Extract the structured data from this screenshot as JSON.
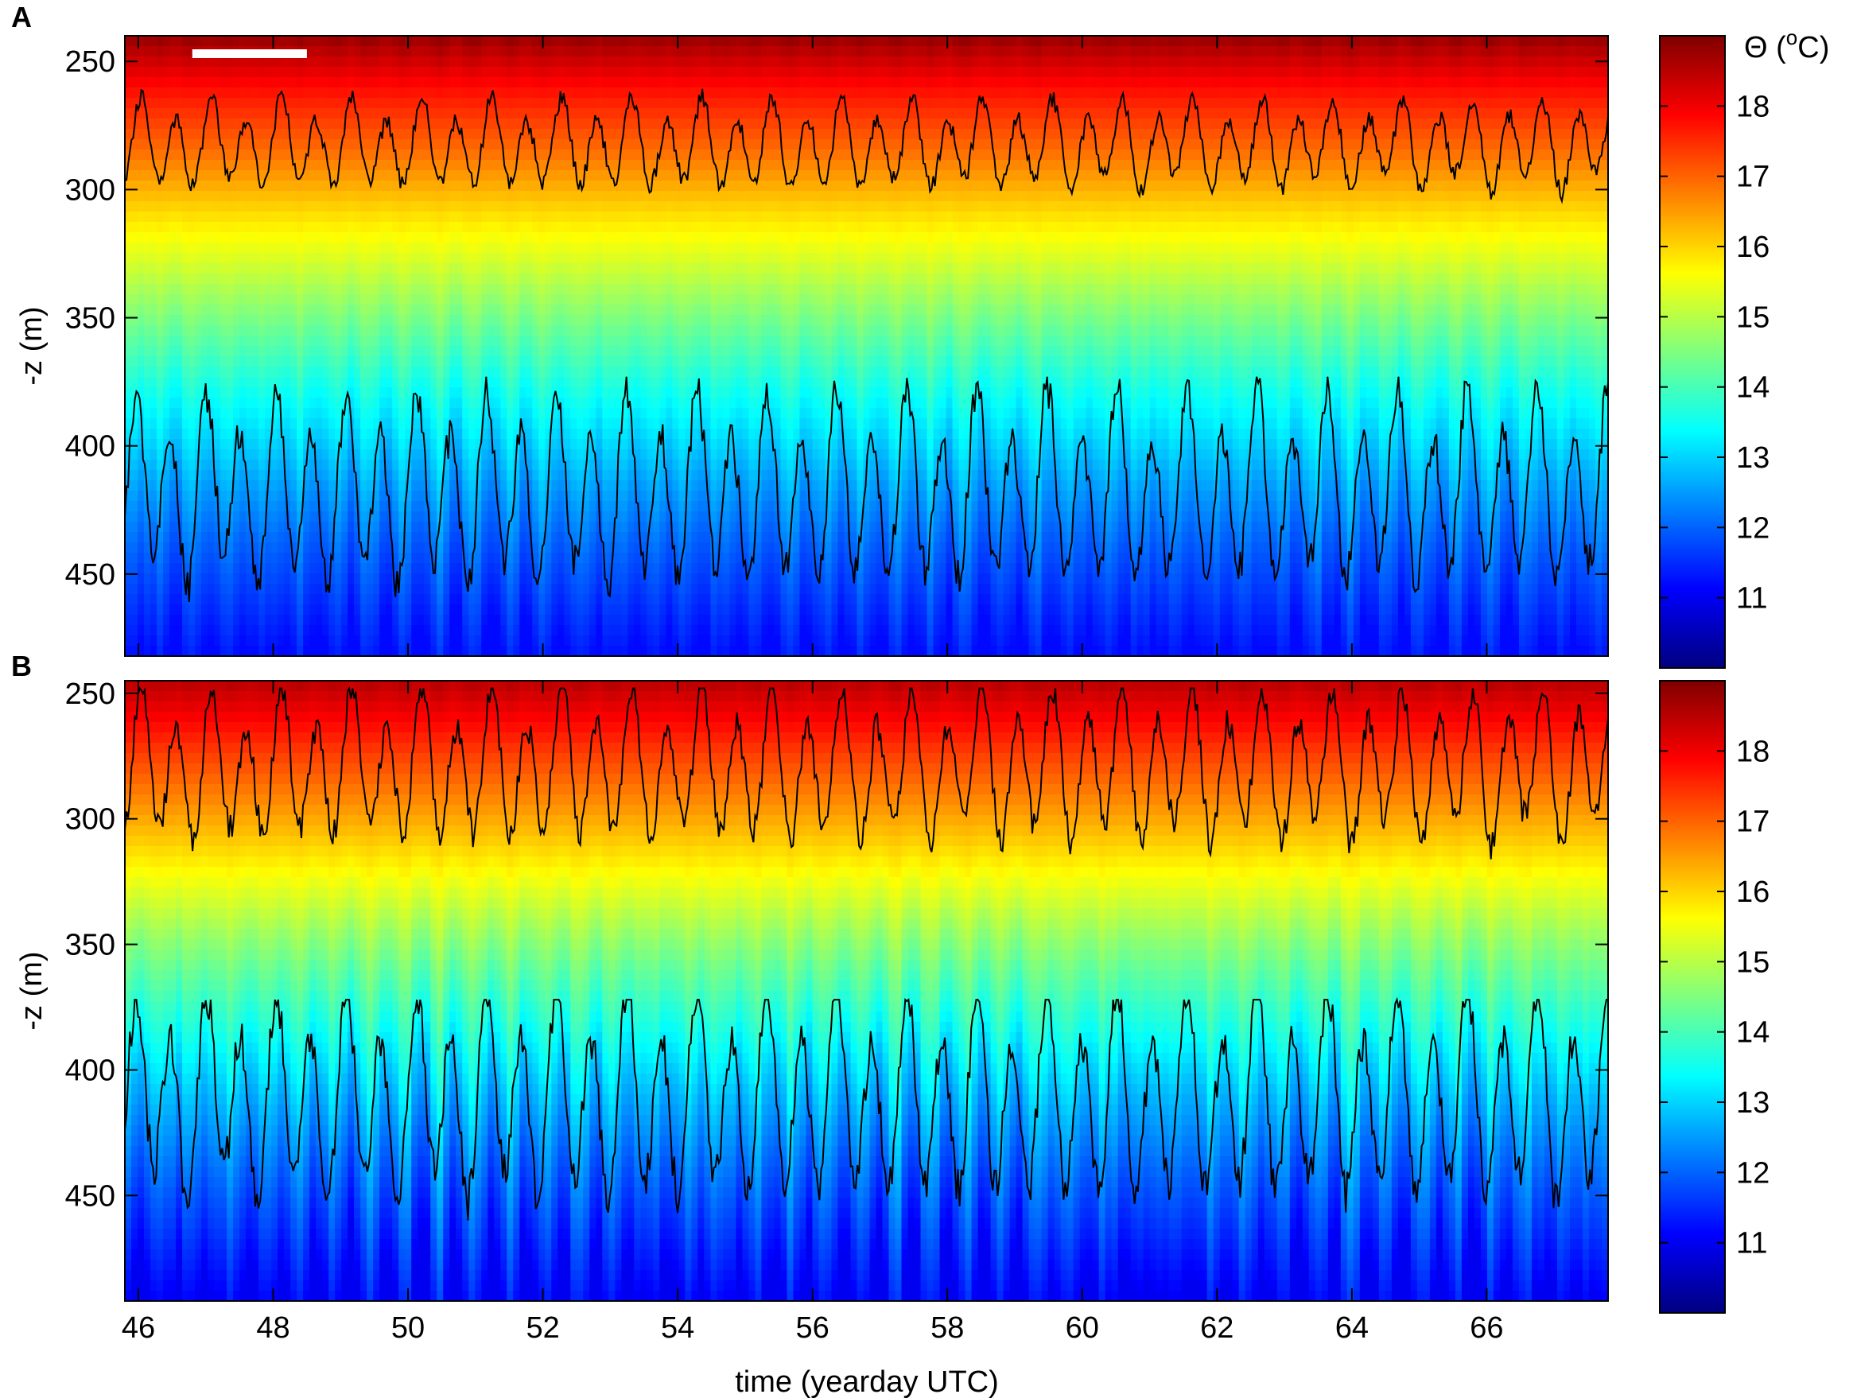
{
  "figure": {
    "colorbar_title": "Θ (°C)",
    "colorbar_title_symbol": "Θ (",
    "colorbar_title_sup": "o",
    "colorbar_title_unit": "C)",
    "x_label": "time (yearday UTC)",
    "colormap": [
      "#00007f",
      "#0000ff",
      "#007fff",
      "#00ffff",
      "#7fff7f",
      "#ffff00",
      "#ff7f00",
      "#ff0000",
      "#7f0000"
    ],
    "contour_color": "#000000"
  },
  "chart_data": [
    {
      "type": "heatmap",
      "panel": "A",
      "xlabel": "",
      "ylabel": "-z (m)",
      "x_ticks": [
        46,
        48,
        50,
        52,
        54,
        56,
        58,
        60,
        62,
        64,
        66
      ],
      "y_ticks": [
        250,
        300,
        350,
        400,
        450
      ],
      "xlim": [
        45.8,
        67.8
      ],
      "ylim": [
        240,
        482
      ],
      "y_reversed": true,
      "colorbar": {
        "ticks": [
          11,
          12,
          13,
          14,
          15,
          16,
          17,
          18
        ],
        "range": [
          10,
          19
        ]
      },
      "temperature_profile_mean": [
        {
          "depth": 240,
          "temp": 18.8
        },
        {
          "depth": 260,
          "temp": 17.8
        },
        {
          "depth": 285,
          "temp": 16.9
        },
        {
          "depth": 310,
          "temp": 15.9
        },
        {
          "depth": 330,
          "temp": 15.2
        },
        {
          "depth": 355,
          "temp": 14.3
        },
        {
          "depth": 380,
          "temp": 13.5
        },
        {
          "depth": 410,
          "temp": 12.7
        },
        {
          "depth": 440,
          "temp": 12.0
        },
        {
          "depth": 482,
          "temp": 11.2
        }
      ],
      "contours": [
        {
          "level_depth_mean": 283,
          "range": [
            255,
            305
          ]
        },
        {
          "level_depth_mean": 418,
          "range": [
            373,
            480
          ]
        }
      ],
      "annotation": "white scale bar near top-left (about 1.7 days)",
      "scale_bar_days": [
        46.8,
        48.5
      ]
    },
    {
      "type": "heatmap",
      "panel": "B",
      "xlabel": "time (yearday UTC)",
      "ylabel": "-z (m)",
      "x_ticks": [
        46,
        48,
        50,
        52,
        54,
        56,
        58,
        60,
        62,
        64,
        66
      ],
      "y_ticks": [
        250,
        300,
        350,
        400,
        450
      ],
      "xlim": [
        45.8,
        67.8
      ],
      "ylim": [
        245,
        492
      ],
      "y_reversed": true,
      "colorbar": {
        "ticks": [
          11,
          12,
          13,
          14,
          15,
          16,
          17,
          18
        ],
        "range": [
          10,
          19
        ]
      },
      "temperature_profile_mean": [
        {
          "depth": 245,
          "temp": 18.5
        },
        {
          "depth": 275,
          "temp": 17.3
        },
        {
          "depth": 300,
          "temp": 16.4
        },
        {
          "depth": 325,
          "temp": 15.5
        },
        {
          "depth": 350,
          "temp": 14.6
        },
        {
          "depth": 380,
          "temp": 13.7
        },
        {
          "depth": 410,
          "temp": 12.8
        },
        {
          "depth": 445,
          "temp": 12.0
        },
        {
          "depth": 492,
          "temp": 11.0
        }
      ],
      "contours": [
        {
          "level_depth_mean": 280,
          "range": [
            248,
            335
          ]
        },
        {
          "level_depth_mean": 412,
          "range": [
            372,
            490
          ]
        }
      ]
    }
  ]
}
